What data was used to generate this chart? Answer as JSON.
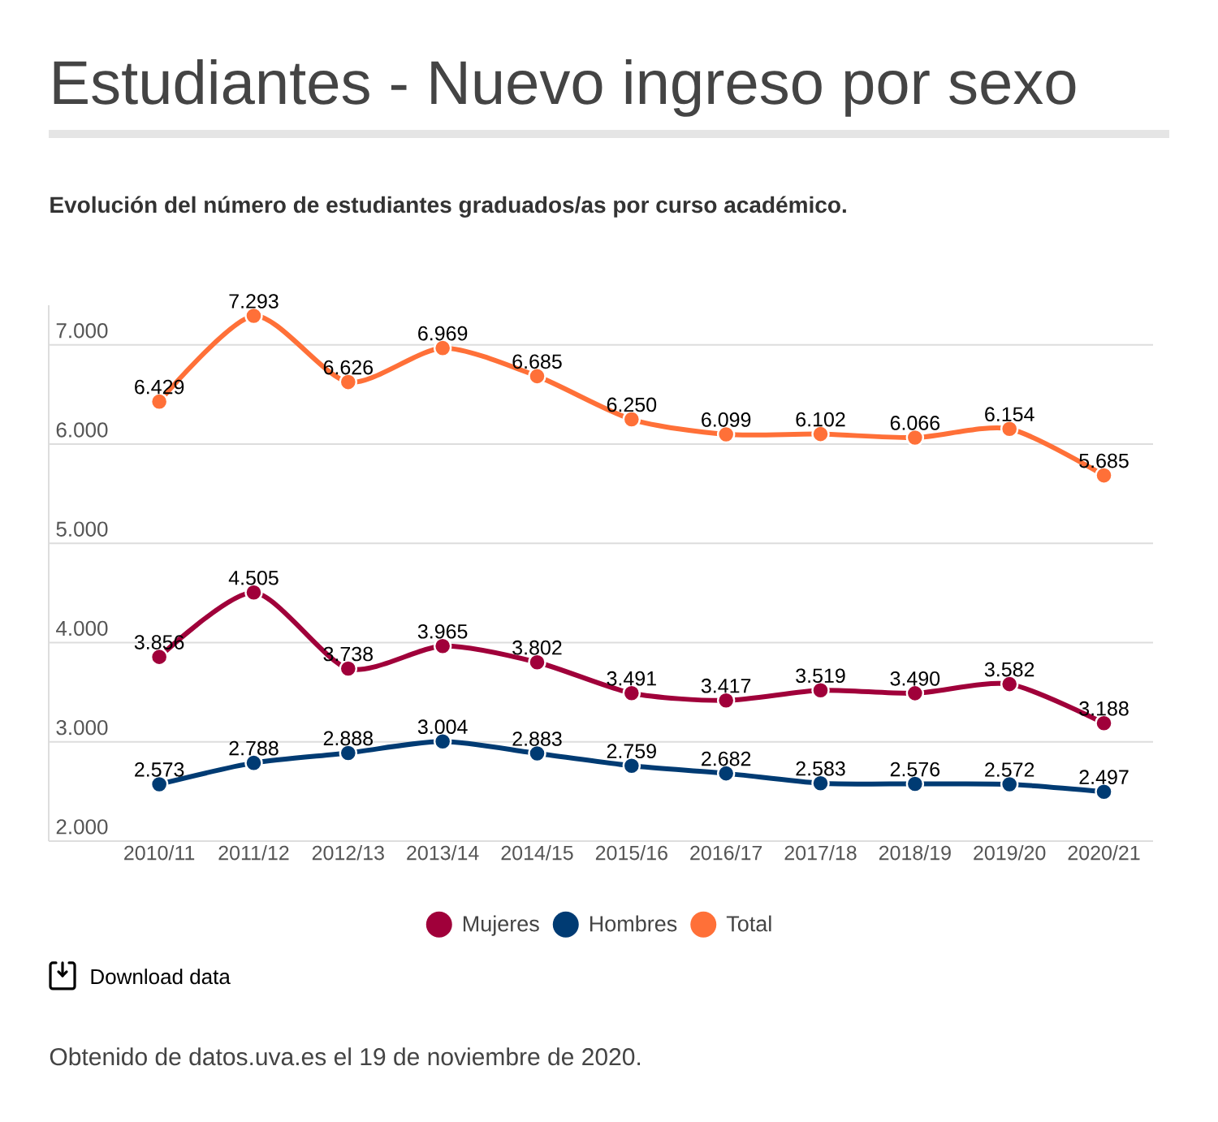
{
  "chart_data": {
    "type": "line",
    "title": "Estudiantes - Nuevo ingreso por sexo",
    "subtitle": "Evolución del número de estudiantes graduados/as por curso académico.",
    "categories": [
      "2010/11",
      "2011/12",
      "2012/13",
      "2013/14",
      "2014/15",
      "2015/16",
      "2016/17",
      "2017/18",
      "2018/19",
      "2019/20",
      "2020/21"
    ],
    "series": [
      {
        "name": "Mujeres",
        "color": "#a0003a",
        "values": [
          3856,
          4505,
          3738,
          3965,
          3802,
          3491,
          3417,
          3519,
          3490,
          3582,
          3188
        ],
        "value_labels": [
          "3.856",
          "4.505",
          "3.738",
          "3.965",
          "3.802",
          "3.491",
          "3.417",
          "3.519",
          "3.490",
          "3.582",
          "3.188"
        ]
      },
      {
        "name": "Hombres",
        "color": "#003b73",
        "values": [
          2573,
          2788,
          2888,
          3004,
          2883,
          2759,
          2682,
          2583,
          2576,
          2572,
          2497
        ],
        "value_labels": [
          "2.573",
          "2.788",
          "2.888",
          "3.004",
          "2.883",
          "2.759",
          "2.682",
          "2.583",
          "2.576",
          "2.572",
          "2.497"
        ]
      },
      {
        "name": "Total",
        "color": "#ff7038",
        "values": [
          6429,
          7293,
          6626,
          6969,
          6685,
          6250,
          6099,
          6102,
          6066,
          6154,
          5685
        ],
        "value_labels": [
          "6.429",
          "7.293",
          "6.626",
          "6.969",
          "6.685",
          "6.250",
          "6.099",
          "6.102",
          "6.066",
          "6.154",
          "5.685"
        ]
      }
    ],
    "ylim": [
      2000,
      7400
    ],
    "yticks": [
      {
        "value": 2000,
        "label": "2.000"
      },
      {
        "value": 3000,
        "label": "3.000"
      },
      {
        "value": 4000,
        "label": "4.000"
      },
      {
        "value": 5000,
        "label": "5.000"
      },
      {
        "value": 6000,
        "label": "6.000"
      },
      {
        "value": 7000,
        "label": "7.000"
      }
    ],
    "grid": "y",
    "legend": "bottom",
    "marker": "circle",
    "line_style": "solid",
    "annotations": [
      "Download data",
      "Obtenido de datos.uva.es el 19 de noviembre de 2020."
    ]
  }
}
